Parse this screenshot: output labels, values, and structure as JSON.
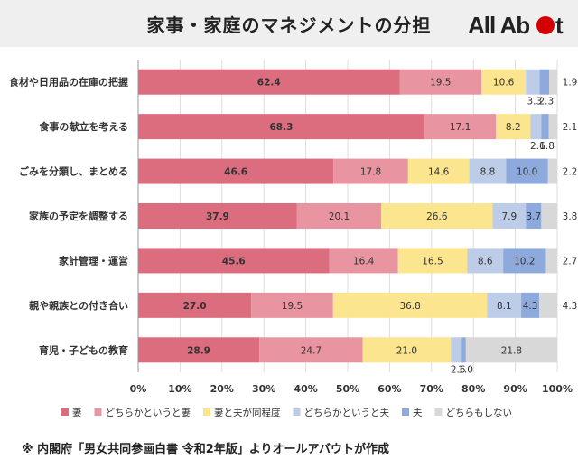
{
  "header": {
    "title": "家事・家庭のマネジメントの分担",
    "logo_text": "All About"
  },
  "footer": {
    "note": "※ 内閣府「男女共同参画白書 令和2年版」よりオールアバウトが作成"
  },
  "chart_data": {
    "type": "bar",
    "orientation": "horizontal",
    "stacked": true,
    "title": "家事・家庭のマネジメントの分担",
    "categories": [
      "食材や日用品の在庫の把握",
      "食事の献立を考える",
      "ごみを分類し、まとめる",
      "家族の予定を調整する",
      "家計管理・運営",
      "親や親族との付き合い",
      "育児・子どもの教育"
    ],
    "series": [
      {
        "name": "妻",
        "color": "#db6d7e",
        "values": [
          62.4,
          68.3,
          46.6,
          37.9,
          45.6,
          27.0,
          28.9
        ],
        "labels": [
          "62.4",
          "68.3",
          "46.6",
          "37.9",
          "45.6",
          "27.0",
          "28.9"
        ]
      },
      {
        "name": "どちらかというと妻",
        "color": "#e895a1",
        "values": [
          19.5,
          17.1,
          17.8,
          20.1,
          16.4,
          19.5,
          24.7
        ],
        "labels": [
          "19.5",
          "17.1",
          "17.8",
          "20.1",
          "16.4",
          "19.5",
          "24.7"
        ]
      },
      {
        "name": "妻と夫が同程度",
        "color": "#fbe58e",
        "values": [
          10.6,
          8.2,
          14.6,
          26.6,
          16.5,
          36.8,
          21.0
        ],
        "labels": [
          "10.6",
          "8.2",
          "14.6",
          "26.6",
          "16.5",
          "36.8",
          "21.0"
        ]
      },
      {
        "name": "どちらかというと夫",
        "color": "#bdcde8",
        "values": [
          3.3,
          2.6,
          8.8,
          7.9,
          8.6,
          8.1,
          2.6
        ],
        "labels": [
          "3.3",
          "2.6",
          "8.8",
          "7.9",
          "8.6",
          "8.1",
          "2.6"
        ]
      },
      {
        "name": "夫",
        "color": "#8ea9dc",
        "values": [
          2.3,
          1.8,
          10.0,
          3.7,
          10.2,
          4.3,
          1.0
        ],
        "labels": [
          "2.3",
          "1.8",
          "10.0",
          "3.7",
          "10.2",
          "4.3",
          "1.0"
        ]
      },
      {
        "name": "どちらもしない",
        "color": "#d8d8d8",
        "values": [
          1.9,
          2.1,
          2.2,
          3.8,
          2.7,
          4.3,
          21.8
        ],
        "labels": [
          "1.9",
          "2.1",
          "2.2",
          "3.8",
          "2.7",
          "4.3",
          "21.8"
        ]
      }
    ],
    "xlim": [
      0,
      100
    ],
    "xticks": [
      "0%",
      "10%",
      "20%",
      "30%",
      "40%",
      "50%",
      "60%",
      "70%",
      "80%",
      "90%",
      "100%"
    ],
    "grid": true,
    "legend": "bottom"
  }
}
